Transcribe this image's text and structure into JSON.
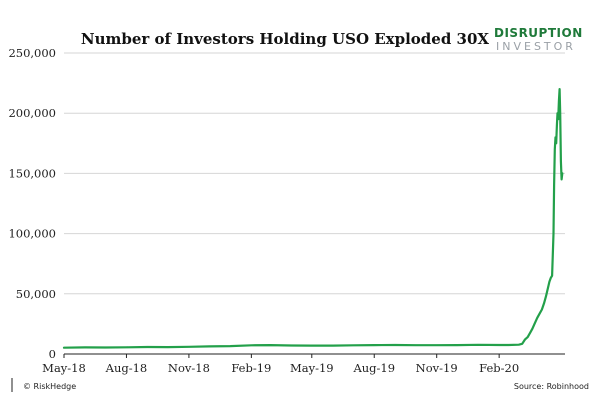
{
  "chart_data": {
    "type": "line",
    "title": "Number of Investors Holding USO Exploded 30X",
    "xlabel": "",
    "ylabel": "",
    "ylim": [
      0,
      250000
    ],
    "yticks": [
      0,
      50000,
      100000,
      150000,
      200000,
      250000
    ],
    "ytick_labels": [
      "0",
      "50,000",
      "100,000",
      "150,000",
      "200,000",
      "250,000"
    ],
    "xticks": [
      "2018-05-01",
      "2018-08-01",
      "2018-11-01",
      "2019-02-01",
      "2019-05-01",
      "2019-08-01",
      "2019-11-01",
      "2020-02-01"
    ],
    "xtick_labels": [
      "May-18",
      "Aug-18",
      "Nov-18",
      "Feb-19",
      "May-19",
      "Aug-19",
      "Nov-19",
      "Feb-20"
    ],
    "xlim": [
      "2018-05-01",
      "2020-05-08"
    ],
    "grid": true,
    "color": "#23a04a",
    "series": [
      {
        "x": [
          "2018-05-01",
          "2018-06-01",
          "2018-07-01",
          "2018-08-01",
          "2018-09-01",
          "2018-10-01",
          "2018-11-01",
          "2018-12-01",
          "2019-01-01",
          "2019-02-01",
          "2019-03-01",
          "2019-04-01",
          "2019-05-01",
          "2019-06-01",
          "2019-07-01",
          "2019-08-01",
          "2019-09-01",
          "2019-10-01",
          "2019-11-01",
          "2019-12-01",
          "2020-01-01",
          "2020-02-01",
          "2020-02-15",
          "2020-03-01",
          "2020-03-06",
          "2020-03-10",
          "2020-03-14",
          "2020-03-18",
          "2020-03-21",
          "2020-03-24",
          "2020-03-28",
          "2020-04-01",
          "2020-04-04",
          "2020-04-07",
          "2020-04-10",
          "2020-04-13",
          "2020-04-15",
          "2020-04-17",
          "2020-04-19",
          "2020-04-21",
          "2020-04-22",
          "2020-04-23",
          "2020-04-24",
          "2020-04-25",
          "2020-04-26",
          "2020-04-27",
          "2020-04-28",
          "2020-04-29",
          "2020-04-30",
          "2020-05-01",
          "2020-05-02",
          "2020-05-03",
          "2020-05-04"
        ],
        "y": [
          5200,
          5500,
          5400,
          5600,
          5800,
          5700,
          6000,
          6300,
          6600,
          7200,
          7400,
          7100,
          7000,
          7000,
          7200,
          7400,
          7500,
          7300,
          7300,
          7400,
          7600,
          7500,
          7500,
          7700,
          8500,
          12000,
          14000,
          18000,
          21000,
          25000,
          30000,
          34000,
          37000,
          42000,
          48000,
          55000,
          60000,
          63000,
          65000,
          100000,
          140000,
          170000,
          180000,
          175000,
          190000,
          200000,
          195000,
          210000,
          220000,
          200000,
          160000,
          145000,
          150000
        ]
      }
    ]
  },
  "logo": {
    "line1": "DISRUPTION",
    "line2": "INVESTOR"
  },
  "footer": {
    "left": "© RiskHedge",
    "right": "Source: Robinhood"
  }
}
